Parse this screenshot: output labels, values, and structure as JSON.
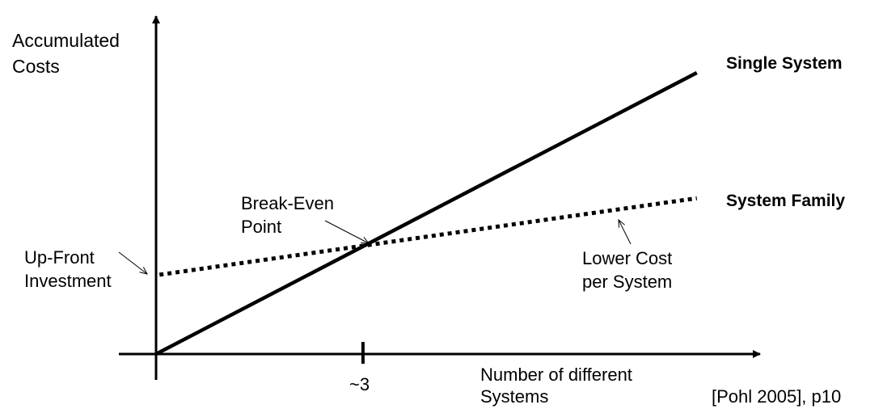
{
  "chart_data": {
    "type": "line",
    "ylabel": "Accumulated Costs",
    "xlabel": "Number of different Systems",
    "x_ticks": [
      {
        "value": 3,
        "label": "~3"
      }
    ],
    "xlim": [
      -0.55,
      8.8
    ],
    "ylim": [
      -0.4,
      5.0
    ],
    "grid": false,
    "series": [
      {
        "name": "Single System",
        "style": "solid",
        "x": [
          0,
          7.84
        ],
        "y": [
          0,
          4.08
        ]
      },
      {
        "name": "System Family",
        "style": "dotted",
        "x": [
          0.05,
          7.84
        ],
        "y": [
          1.15,
          2.26
        ]
      }
    ],
    "annotations": {
      "break_even": "Break-Even Point",
      "up_front": "Up-Front Investment",
      "lower_cost": "Lower Cost per System"
    },
    "source": "[Pohl 2005], p10"
  }
}
